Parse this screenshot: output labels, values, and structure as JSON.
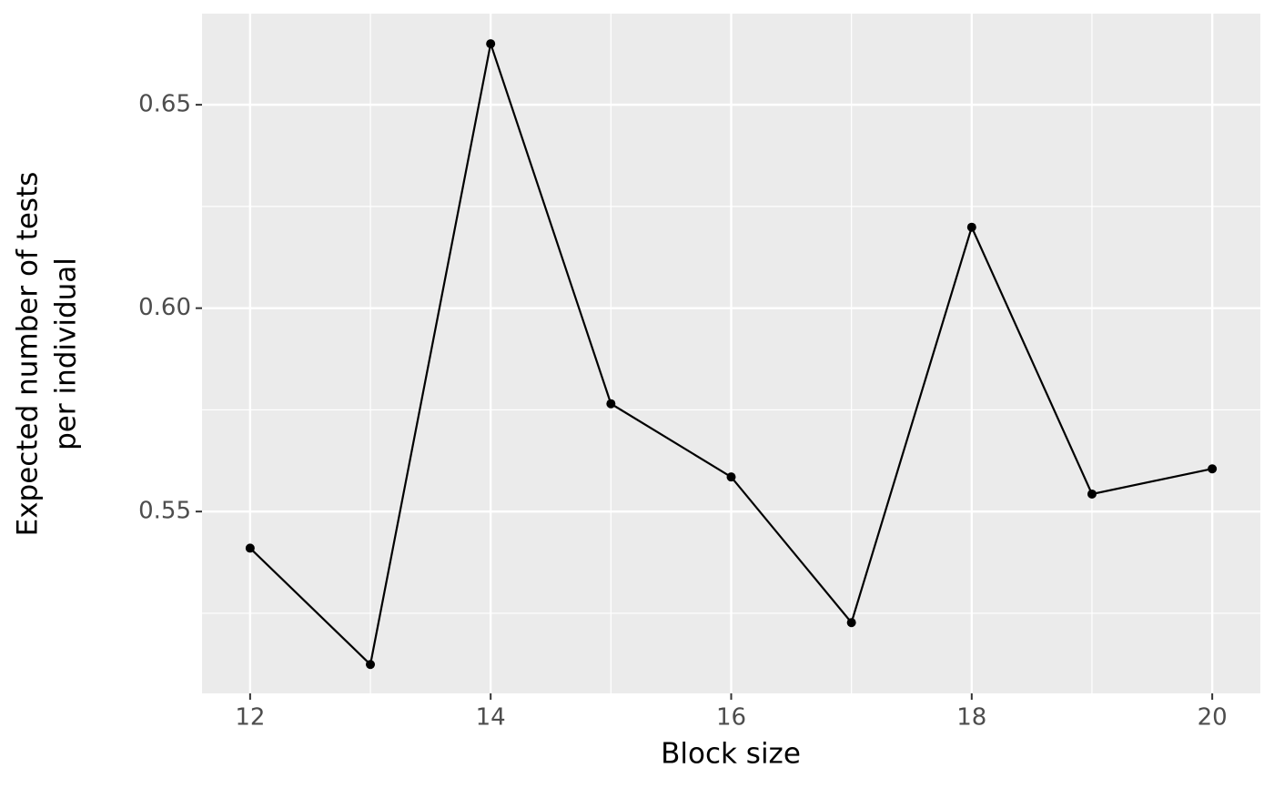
{
  "chart_data": {
    "type": "line",
    "xlabel": "Block size",
    "ylabel": [
      "Expected number of tests",
      "per individual"
    ],
    "x": [
      12,
      13,
      14,
      15,
      16,
      17,
      18,
      19,
      20
    ],
    "series": [
      {
        "color": "#000000",
        "values": [
          0.541,
          0.5124,
          0.665,
          0.5765,
          0.5585,
          0.5227,
          0.6199,
          0.5543,
          0.5605
        ]
      }
    ],
    "xlim": [
      11.6,
      20.4
    ],
    "xticks": [
      12,
      14,
      16,
      18,
      20
    ],
    "ylim": [
      0.5053,
      0.6724
    ],
    "yticks": [
      {
        "value": 0.55,
        "label": "0.55"
      },
      {
        "value": 0.6,
        "label": "0.60"
      },
      {
        "value": 0.65,
        "label": "0.65"
      }
    ],
    "grid": true,
    "panel_background": "#EBEBEB"
  }
}
